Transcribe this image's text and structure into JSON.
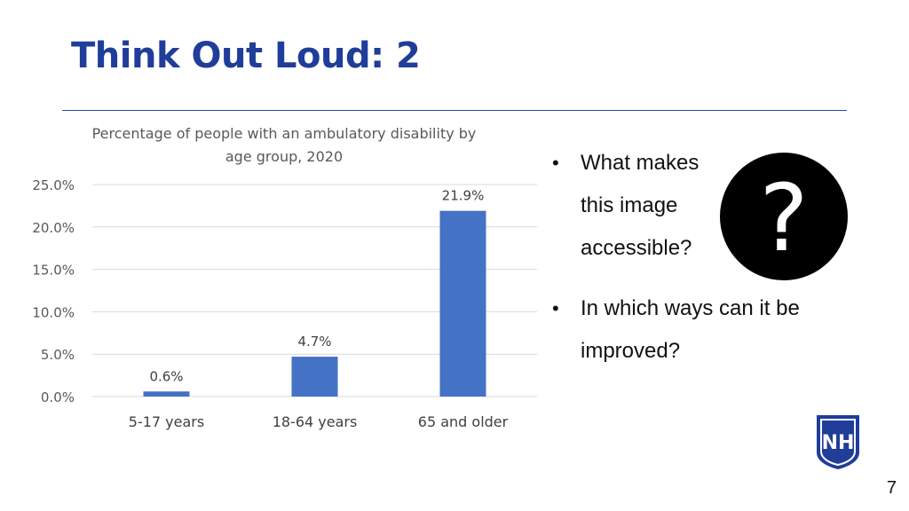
{
  "slide": {
    "title": "Think Out Loud: 2",
    "page_number": "7",
    "bullets": [
      "What makes this image accessible?",
      "In which ways can it be improved?"
    ],
    "badge_symbol": "?",
    "logo_icon": "unh-shield-logo",
    "logo_text": "NH",
    "accent_color": "#1f3d99"
  },
  "chart_data": {
    "type": "bar",
    "title": "Percentage of people with an ambulatory disability by age group, 2020",
    "title_lines": [
      "Percentage of people with an ambulatory disability by",
      "age group, 2020"
    ],
    "categories": [
      "5-17 years",
      "18-64 years",
      "65 and older"
    ],
    "values": [
      0.6,
      4.7,
      21.9
    ],
    "data_labels": [
      "0.6%",
      "4.7%",
      "21.9%"
    ],
    "ylim": [
      0,
      25
    ],
    "yticks": [
      0,
      5,
      10,
      15,
      20,
      25
    ],
    "ytick_labels": [
      "0.0%",
      "5.0%",
      "10.0%",
      "15.0%",
      "20.0%",
      "25.0%"
    ],
    "xlabel": "",
    "ylabel": "",
    "grid": true,
    "bar_color": "#4472c4"
  }
}
